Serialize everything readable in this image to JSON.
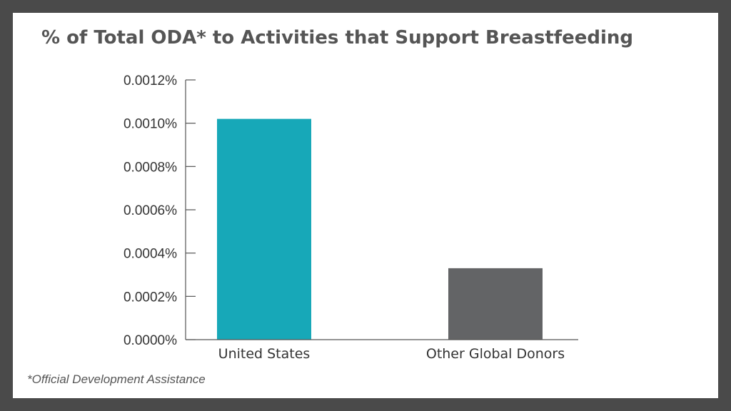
{
  "chart_data": {
    "type": "bar",
    "title": "% of Total ODA* to Activities that Support Breastfeeding",
    "categories": [
      "United States",
      "Other Global Donors"
    ],
    "values": [
      0.00102,
      0.00033
    ],
    "colors": [
      "#17a8b8",
      "#636466"
    ],
    "ylim": [
      0,
      0.0012
    ],
    "yticks": [
      "0.0000%",
      "0.0002%",
      "0.0004%",
      "0.0006%",
      "0.0008%",
      "0.0010%",
      "0.0012%"
    ],
    "ytick_values": [
      0,
      0.0002,
      0.0004,
      0.0006,
      0.0008,
      0.001,
      0.0012
    ],
    "xlabel": "",
    "ylabel": "",
    "grid": false,
    "legend": "none"
  },
  "footnote": "*Official Development Assistance"
}
